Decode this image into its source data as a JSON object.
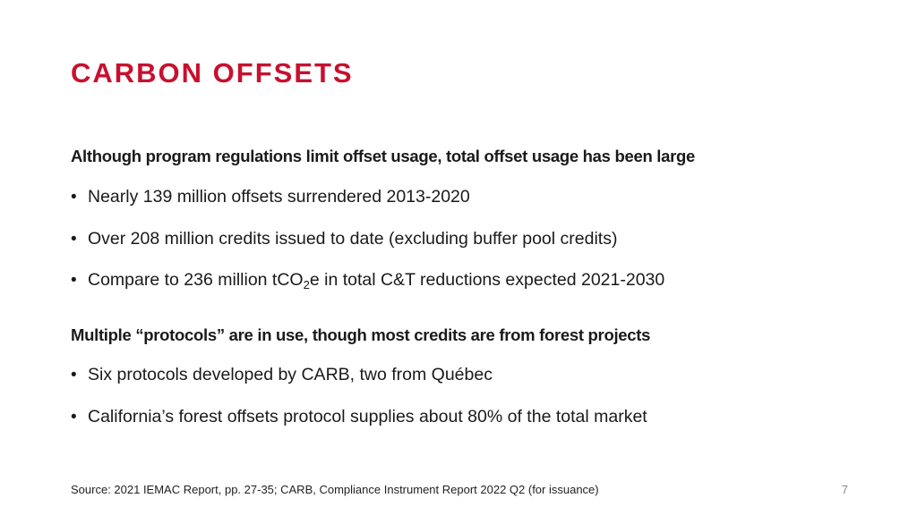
{
  "slide": {
    "title": "CARBON OFFSETS",
    "sections": [
      {
        "heading": "Although program regulations limit offset usage, total offset usage has been large",
        "bullets": [
          "Nearly 139 million offsets surrendered 2013-2020",
          "Over 208 million credits issued to date (excluding buffer pool credits)"
        ],
        "bullet3": {
          "before": "Compare to 236 million tCO",
          "sub": "2",
          "after": "e in total C&T reductions expected 2021-2030"
        }
      },
      {
        "heading": "Multiple “protocols” are in use, though most credits are from forest projects",
        "bullets": [
          "Six protocols developed by CARB, two from Québec",
          "California’s forest offsets protocol supplies about 80% of the total market"
        ]
      }
    ],
    "bullet_symbol": "•",
    "source": "Source: 2021 IEMAC Report, pp. 27-35; CARB, Compliance Instrument Report 2022 Q2 (for issuance)",
    "page_number": "7",
    "accent_color": "#c8102e"
  }
}
